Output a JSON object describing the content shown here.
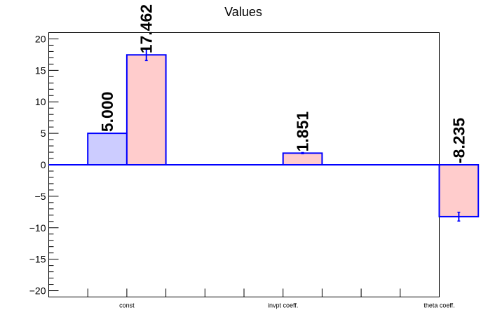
{
  "chart_data": {
    "type": "bar",
    "title": "Values",
    "xlabel": "",
    "ylabel": "",
    "categories": [
      "const",
      "invpt coeff.",
      "theta coeff."
    ],
    "ylim": [
      -21,
      21
    ],
    "y_ticks": [
      -20,
      -15,
      -10,
      -5,
      0,
      5,
      10,
      15,
      20
    ],
    "series": [
      {
        "values": [
          5.0,
          null,
          null
        ],
        "errors": [
          0,
          0,
          0
        ],
        "labels": [
          "5.000",
          "",
          ""
        ],
        "color": "#ccccff"
      },
      {
        "values": [
          17.462,
          1.851,
          -8.235
        ],
        "errors": [
          0.9,
          0.1,
          0.7
        ],
        "labels": [
          "17.462",
          "1.851",
          "-8.235"
        ],
        "color": "#ffcccc"
      }
    ],
    "bar_edge_color": "#0000ff",
    "grid": false,
    "legend": "none"
  }
}
